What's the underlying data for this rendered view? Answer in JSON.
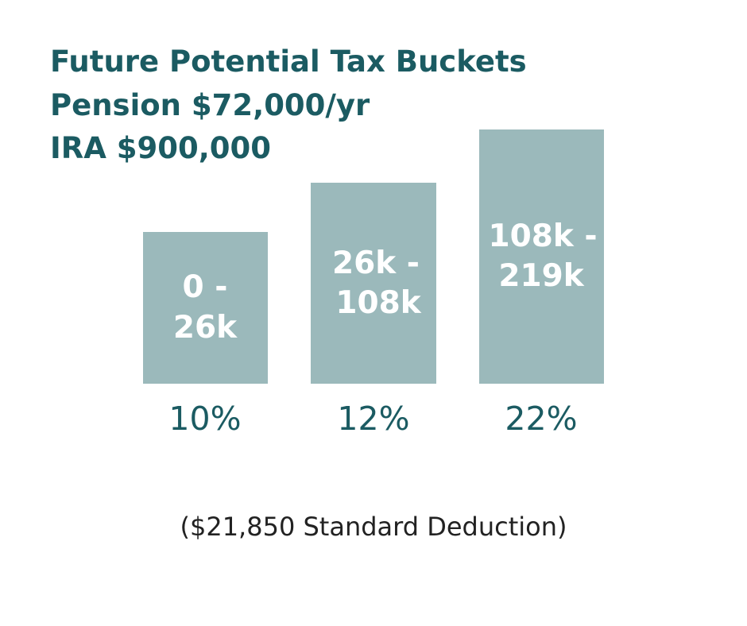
{
  "header": {
    "title": "Future Potential Tax Buckets",
    "subtitle_lines": [
      "Pension $72,000/yr",
      "IRA $900,000"
    ]
  },
  "buckets": [
    {
      "range_lines": [
        "0 -",
        "26k"
      ],
      "rate": "10%"
    },
    {
      "range_lines": [
        "26k -",
        "108k"
      ],
      "rate": "12%"
    },
    {
      "range_lines": [
        "108k -",
        "219k"
      ],
      "rate": "22%"
    }
  ],
  "footnote": "($21,850 Standard Deduction)"
}
